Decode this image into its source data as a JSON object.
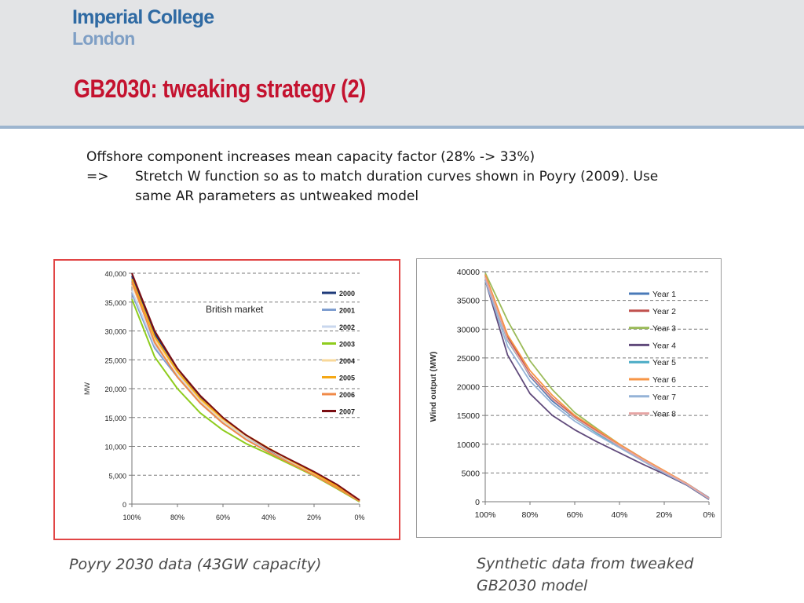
{
  "header": {
    "logo_line1": "Imperial College",
    "logo_line2": "London",
    "title": "GB2030: tweaking strategy (2)"
  },
  "body": {
    "line1": "Offshore component increases mean capacity factor (28% -> 33%)",
    "line2_prefix": "=>",
    "line2_text": "Stretch W function so as to match duration curves shown in Poyry (2009). Use same AR parameters as untweaked model"
  },
  "captions": {
    "left": "Poyry 2030 data (43GW capacity)",
    "right": "Synthetic data from tweaked GB2030 model"
  },
  "chart_data": [
    {
      "type": "line",
      "title": "British market",
      "xlabel": "",
      "ylabel": "MW",
      "x_ticks": [
        "100%",
        "80%",
        "60%",
        "40%",
        "20%",
        "0%"
      ],
      "y_ticks": [
        "0",
        "5,000",
        "10,000",
        "15,000",
        "20,000",
        "25,000",
        "30,000",
        "35,000",
        "40,000"
      ],
      "ylim": [
        0,
        40000
      ],
      "grid": "horizontal dashed",
      "legend_position": "right",
      "x": [
        100,
        90,
        80,
        70,
        60,
        50,
        40,
        30,
        20,
        10,
        0
      ],
      "series": [
        {
          "name": "2000",
          "color": "#1f3b7a",
          "values": [
            39500,
            29500,
            23500,
            18500,
            14800,
            11800,
            9300,
            7200,
            5200,
            3000,
            600
          ]
        },
        {
          "name": "2001",
          "color": "#7f9ed0",
          "values": [
            36500,
            27000,
            22000,
            17500,
            14000,
            11300,
            9000,
            7000,
            5000,
            2800,
            500
          ]
        },
        {
          "name": "2002",
          "color": "#c9d7ee",
          "values": [
            37000,
            27500,
            22300,
            17800,
            14300,
            11500,
            9100,
            7100,
            5100,
            2900,
            500
          ]
        },
        {
          "name": "2003",
          "color": "#8fcc1e",
          "values": [
            35500,
            25500,
            20000,
            15800,
            12800,
            10500,
            8700,
            6800,
            4900,
            2700,
            400
          ]
        },
        {
          "name": "2004",
          "color": "#f8d89a",
          "values": [
            38000,
            28500,
            22800,
            18000,
            14500,
            11800,
            9500,
            7400,
            5300,
            3000,
            500
          ]
        },
        {
          "name": "2005",
          "color": "#f5a815",
          "values": [
            39000,
            29000,
            23000,
            18300,
            14800,
            12000,
            9700,
            7500,
            5400,
            3100,
            600
          ]
        },
        {
          "name": "2006",
          "color": "#f08a48",
          "values": [
            38500,
            28000,
            22000,
            17500,
            14000,
            11200,
            9000,
            7000,
            5000,
            2800,
            500
          ]
        },
        {
          "name": "2007",
          "color": "#7a0d12",
          "values": [
            40000,
            30000,
            23500,
            18800,
            15000,
            12000,
            9600,
            7600,
            5600,
            3400,
            700
          ]
        }
      ]
    },
    {
      "type": "line",
      "title": "",
      "xlabel": "",
      "ylabel": "Wind output (MW)",
      "x_ticks": [
        "100%",
        "80%",
        "60%",
        "40%",
        "20%",
        "0%"
      ],
      "y_ticks": [
        "0",
        "5000",
        "10000",
        "15000",
        "20000",
        "25000",
        "30000",
        "35000",
        "40000"
      ],
      "ylim": [
        0,
        40000
      ],
      "grid": "horizontal dashed",
      "legend_position": "right",
      "x": [
        100,
        90,
        80,
        70,
        60,
        50,
        40,
        30,
        20,
        10,
        0
      ],
      "series": [
        {
          "name": "Year 1",
          "color": "#4a7ab8",
          "values": [
            39500,
            28500,
            21800,
            17500,
            14500,
            12200,
            10000,
            7600,
            5300,
            3200,
            700
          ]
        },
        {
          "name": "Year 2",
          "color": "#c0504d",
          "values": [
            39500,
            28800,
            22200,
            18000,
            14800,
            12300,
            9800,
            7400,
            5200,
            3100,
            600
          ]
        },
        {
          "name": "Year 3",
          "color": "#9bbb59",
          "values": [
            39800,
            31500,
            24500,
            19500,
            15500,
            12700,
            10000,
            7500,
            5100,
            3000,
            500
          ]
        },
        {
          "name": "Year 4",
          "color": "#604a7b",
          "values": [
            38500,
            25500,
            18800,
            15000,
            12500,
            10400,
            8500,
            6600,
            4800,
            2900,
            400
          ]
        },
        {
          "name": "Year 5",
          "color": "#4bacc6",
          "values": [
            39000,
            28000,
            22000,
            17800,
            14500,
            11900,
            9500,
            7200,
            5000,
            3000,
            500
          ]
        },
        {
          "name": "Year 6",
          "color": "#f79646",
          "values": [
            39500,
            29000,
            22800,
            18500,
            15000,
            12500,
            10000,
            7600,
            5400,
            3200,
            600
          ]
        },
        {
          "name": "Year 7",
          "color": "#95b3d7",
          "values": [
            38500,
            27000,
            21000,
            17000,
            14000,
            11600,
            9400,
            7200,
            5000,
            3000,
            500
          ]
        },
        {
          "name": "Year 8",
          "color": "#e6a5a4",
          "values": [
            39000,
            28200,
            22000,
            17800,
            14600,
            12100,
            9700,
            7400,
            5200,
            3100,
            600
          ]
        }
      ]
    }
  ]
}
